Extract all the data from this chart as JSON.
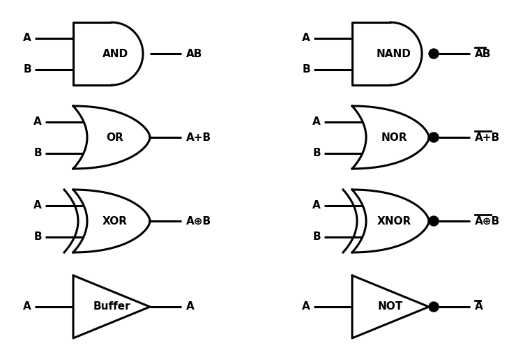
{
  "background_color": "#ffffff",
  "line_color": "#000000",
  "line_width": 2.2,
  "font_size": 11,
  "gates": [
    {
      "type": "AND",
      "col": 0,
      "row": 0,
      "label": "AND",
      "output_label": "AB",
      "negated": false,
      "inputs": [
        "A",
        "B"
      ]
    },
    {
      "type": "NAND",
      "col": 1,
      "row": 0,
      "label": "NAND",
      "output_label": "AB",
      "negated": true,
      "inputs": [
        "A",
        "B"
      ],
      "overline": true
    },
    {
      "type": "OR",
      "col": 0,
      "row": 1,
      "label": "OR",
      "output_label": "A+B",
      "negated": false,
      "inputs": [
        "A",
        "B"
      ]
    },
    {
      "type": "NOR",
      "col": 1,
      "row": 1,
      "label": "NOR",
      "output_label": "A+B",
      "negated": true,
      "inputs": [
        "A",
        "B"
      ],
      "overline": true
    },
    {
      "type": "XOR",
      "col": 0,
      "row": 2,
      "label": "XOR",
      "output_label": "A⊕B",
      "negated": false,
      "inputs": [
        "A",
        "B"
      ]
    },
    {
      "type": "XNOR",
      "col": 1,
      "row": 2,
      "label": "XNOR",
      "output_label": "A⊕B",
      "negated": true,
      "inputs": [
        "A",
        "B"
      ],
      "overline": true
    },
    {
      "type": "BUFFER",
      "col": 0,
      "row": 3,
      "label": "Buffer",
      "output_label": "A",
      "negated": false,
      "inputs": [
        "A"
      ]
    },
    {
      "type": "NOT",
      "col": 1,
      "row": 3,
      "label": "NOT",
      "output_label": "A",
      "negated": true,
      "inputs": [
        "A"
      ],
      "overline": true
    }
  ]
}
